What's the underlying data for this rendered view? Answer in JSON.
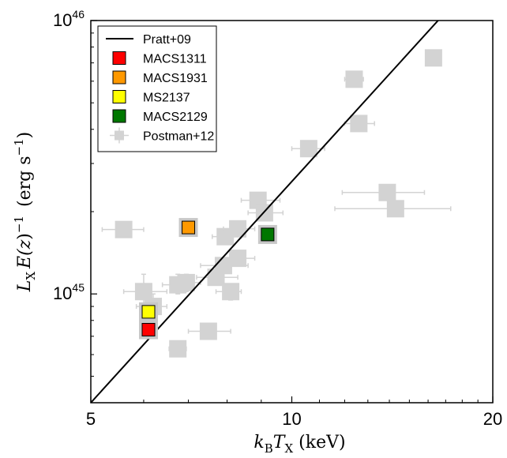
{
  "chart_data": {
    "type": "scatter",
    "xscale": "log",
    "yscale": "log",
    "xlim": [
      5,
      20
    ],
    "ylim": [
      4e+44,
      1e+46
    ],
    "xlabel": "k_B T_X (keV)",
    "ylabel": "L_X E(z)^-1 (erg s^-1)",
    "xticks": [
      {
        "value": 5,
        "label": "5"
      },
      {
        "value": 10,
        "label": "10"
      },
      {
        "value": 20,
        "label": "20"
      }
    ],
    "yticks": [
      {
        "value": 1e+45,
        "base": "10",
        "exp": "45"
      },
      {
        "value": 1e+46,
        "base": "10",
        "exp": "46"
      }
    ],
    "fit_line": {
      "name": "Pratt+09",
      "points": [
        [
          5.0,
          4e+44
        ],
        [
          16.56,
          1e+46
        ]
      ],
      "color": "#000000"
    },
    "highlighted": [
      {
        "name": "MACS1311",
        "x": 6.1,
        "y": 7.4e+44,
        "color": "#ff0000"
      },
      {
        "name": "MACS1931",
        "x": 7.0,
        "y": 1.75e+45,
        "color": "#ff9900"
      },
      {
        "name": "MS2137",
        "x": 6.1,
        "y": 8.6e+44,
        "color": "#ffff00"
      },
      {
        "name": "MACS2129",
        "x": 9.2,
        "y": 1.65e+45,
        "color": "#007700"
      }
    ],
    "background_series": {
      "name": "Postman+12",
      "color": "#d3d3d3",
      "points": [
        {
          "x": 5.6,
          "y": 1.72e+45,
          "xlo": 5.2,
          "xhi": 6.0,
          "ylo": 1.72e+45,
          "yhi": 1.72e+45
        },
        {
          "x": 6.0,
          "y": 1.02e+45,
          "xlo": 5.6,
          "xhi": 6.5,
          "ylo": 9.2e+44,
          "yhi": 1.18e+45
        },
        {
          "x": 6.2,
          "y": 9e+44,
          "xlo": 5.85,
          "xhi": 6.5,
          "ylo": 8e+44,
          "yhi": 1e+45
        },
        {
          "x": 6.75,
          "y": 1.08e+45,
          "xlo": 6.4,
          "xhi": 7.1,
          "ylo": 1e+45,
          "yhi": 1.18e+45
        },
        {
          "x": 6.95,
          "y": 1.1e+45,
          "xlo": 6.6,
          "xhi": 7.3,
          "ylo": 1.02e+45,
          "yhi": 1.18e+45
        },
        {
          "x": 6.75,
          "y": 6.3e+44,
          "xlo": 6.55,
          "xhi": 6.95,
          "ylo": 5.9e+44,
          "yhi": 6.7e+44
        },
        {
          "x": 7.5,
          "y": 7.3e+44,
          "xlo": 7.0,
          "xhi": 8.1,
          "ylo": 7e+44,
          "yhi": 7.6e+44
        },
        {
          "x": 7.7,
          "y": 1.15e+45,
          "xlo": 7.2,
          "xhi": 8.3,
          "ylo": 1.1e+45,
          "yhi": 1.2e+45
        },
        {
          "x": 7.9,
          "y": 1.27e+45,
          "xlo": 7.3,
          "xhi": 8.6,
          "ylo": 1.2e+45,
          "yhi": 1.35e+45
        },
        {
          "x": 8.1,
          "y": 1.02e+45,
          "xlo": 7.7,
          "xhi": 8.4,
          "ylo": 9.5e+44,
          "yhi": 1.08e+45
        },
        {
          "x": 8.3,
          "y": 1.35e+45,
          "xlo": 7.9,
          "xhi": 8.8,
          "ylo": 1.28e+45,
          "yhi": 1.42e+45
        },
        {
          "x": 7.95,
          "y": 1.62e+45,
          "xlo": 7.6,
          "xhi": 8.4,
          "ylo": 1.55e+45,
          "yhi": 1.7e+45
        },
        {
          "x": 8.3,
          "y": 1.73e+45,
          "xlo": 7.9,
          "xhi": 8.8,
          "ylo": 1.65e+45,
          "yhi": 1.8e+45
        },
        {
          "x": 8.9,
          "y": 2.2e+45,
          "xlo": 8.4,
          "xhi": 9.6,
          "ylo": 2.1e+45,
          "yhi": 2.3e+45
        },
        {
          "x": 9.1,
          "y": 1.98e+45,
          "xlo": 8.6,
          "xhi": 9.7,
          "ylo": 1.9e+45,
          "yhi": 2.06e+45
        },
        {
          "x": 10.6,
          "y": 3.4e+45,
          "xlo": 10.0,
          "xhi": 11.2,
          "ylo": 3.25e+45,
          "yhi": 3.55e+45
        },
        {
          "x": 12.4,
          "y": 6.1e+45,
          "xlo": 12.0,
          "xhi": 12.8,
          "ylo": 5.9e+45,
          "yhi": 6.3e+45
        },
        {
          "x": 12.6,
          "y": 4.2e+45,
          "xlo": 12.0,
          "xhi": 13.3,
          "ylo": 4.05e+45,
          "yhi": 4.35e+45
        },
        {
          "x": 13.9,
          "y": 2.35e+45,
          "xlo": 11.9,
          "xhi": 15.8,
          "ylo": 2.25e+45,
          "yhi": 2.45e+45
        },
        {
          "x": 14.3,
          "y": 2.05e+45,
          "xlo": 11.6,
          "xhi": 17.3,
          "ylo": 1.95e+45,
          "yhi": 2.15e+45
        },
        {
          "x": 16.3,
          "y": 7.3e+45,
          "xlo": 15.9,
          "xhi": 16.7,
          "ylo": 7.1e+45,
          "yhi": 7.5e+45
        }
      ]
    },
    "legend": {
      "position": "top-left",
      "entries": [
        {
          "label": "Pratt+09",
          "kind": "line",
          "color": "#000000"
        },
        {
          "label": "MACS1311",
          "kind": "square",
          "color": "#ff0000"
        },
        {
          "label": "MACS1931",
          "kind": "square",
          "color": "#ff9900"
        },
        {
          "label": "MS2137",
          "kind": "square",
          "color": "#ffff00"
        },
        {
          "label": "MACS2129",
          "kind": "square",
          "color": "#007700"
        },
        {
          "label": "Postman+12",
          "kind": "errorbar",
          "color": "#d3d3d3"
        }
      ]
    }
  }
}
